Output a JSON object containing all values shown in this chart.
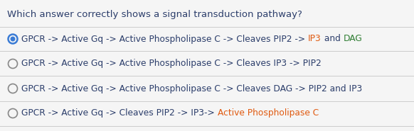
{
  "title": "Which answer correctly shows a signal transduction pathway?",
  "title_color": "#2c3e6b",
  "background_color": "#f5f5f5",
  "options": [
    {
      "selected": true,
      "segments": [
        {
          "text": "GPCR -> Active Gq -> Active Phospholipase C -> Cleaves PIP2 -> ",
          "color": "#2c3e6b"
        },
        {
          "text": "IP3",
          "color": "#e05a10"
        },
        {
          "text": " and ",
          "color": "#2c3e6b"
        },
        {
          "text": "DAG",
          "color": "#2e7d32"
        }
      ]
    },
    {
      "selected": false,
      "segments": [
        {
          "text": "GPCR -> Active Gq -> Active Phospholipase C -> Cleaves IP3 -> PIP2",
          "color": "#2c3e6b"
        }
      ]
    },
    {
      "selected": false,
      "segments": [
        {
          "text": "GPCR -> Active Gq -> Active Phospholipase C -> Cleaves DAG -> PIP2 and IP3",
          "color": "#2c3e6b"
        }
      ]
    },
    {
      "selected": false,
      "segments": [
        {
          "text": "GPCR -> Active Gq -> Cleaves PIP2 -> IP3-> ",
          "color": "#2c3e6b"
        },
        {
          "text": "Active Phospholipase C",
          "color": "#e05a10"
        }
      ]
    }
  ],
  "radio_selected_outer": "#3a7bd5",
  "radio_selected_inner": "#3a7bd5",
  "radio_unselected": "#888888",
  "line_color": "#cccccc",
  "title_fontsize": 9.5,
  "option_fontsize": 8.8
}
